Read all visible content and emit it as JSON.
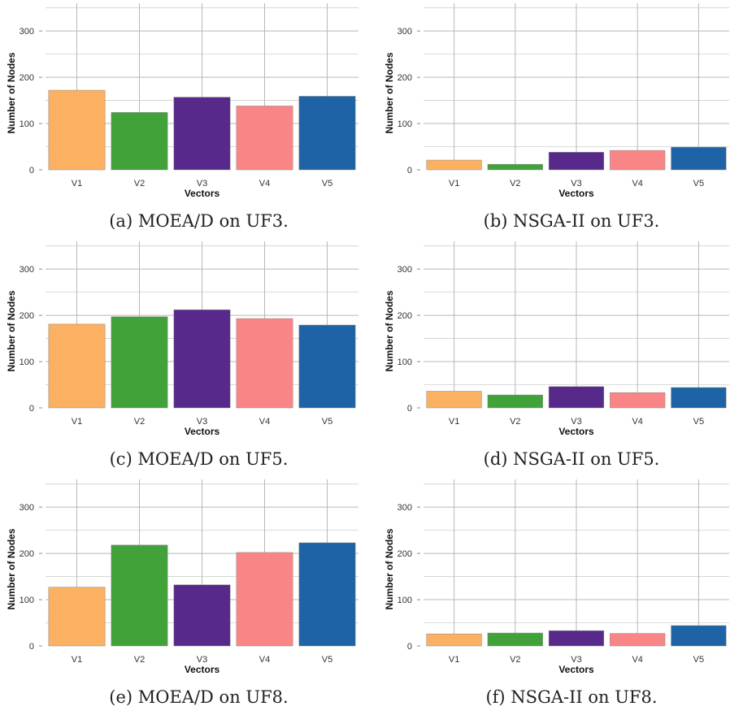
{
  "chart_data": [
    {
      "id": "a",
      "type": "bar",
      "caption": "(a) MOEA/D on UF3.",
      "categories": [
        "V1",
        "V2",
        "V3",
        "V4",
        "V5"
      ],
      "values": [
        172,
        124,
        157,
        138,
        159
      ],
      "xlabel": "Vectors",
      "ylabel": "Number of Nodes",
      "ylim": [
        0,
        360
      ],
      "yticks": [
        0,
        100,
        200,
        300
      ],
      "grid": true
    },
    {
      "id": "b",
      "type": "bar",
      "caption": "(b) NSGA-II on UF3.",
      "categories": [
        "V1",
        "V2",
        "V3",
        "V4",
        "V5"
      ],
      "values": [
        21,
        12,
        38,
        42,
        49
      ],
      "xlabel": "Vectors",
      "ylabel": "Number of Nodes",
      "ylim": [
        0,
        360
      ],
      "yticks": [
        0,
        100,
        200,
        300
      ],
      "grid": true
    },
    {
      "id": "c",
      "type": "bar",
      "caption": "(c) MOEA/D on UF5.",
      "categories": [
        "V1",
        "V2",
        "V3",
        "V4",
        "V5"
      ],
      "values": [
        181,
        197,
        212,
        193,
        179
      ],
      "xlabel": "Vectors",
      "ylabel": "Number of Nodes",
      "ylim": [
        0,
        360
      ],
      "yticks": [
        0,
        100,
        200,
        300
      ],
      "grid": true
    },
    {
      "id": "d",
      "type": "bar",
      "caption": "(d) NSGA-II on UF5.",
      "categories": [
        "V1",
        "V2",
        "V3",
        "V4",
        "V5"
      ],
      "values": [
        36,
        28,
        46,
        33,
        44
      ],
      "xlabel": "Vectors",
      "ylabel": "Number of Nodes",
      "ylim": [
        0,
        360
      ],
      "yticks": [
        0,
        100,
        200,
        300
      ],
      "grid": true
    },
    {
      "id": "e",
      "type": "bar",
      "caption": "(e) MOEA/D on UF8.",
      "categories": [
        "V1",
        "V2",
        "V3",
        "V4",
        "V5"
      ],
      "values": [
        127,
        218,
        132,
        202,
        223
      ],
      "xlabel": "Vectors",
      "ylabel": "Number of Nodes",
      "ylim": [
        0,
        360
      ],
      "yticks": [
        0,
        100,
        200,
        300
      ],
      "grid": true
    },
    {
      "id": "f",
      "type": "bar",
      "caption": "(f) NSGA-II on UF8.",
      "categories": [
        "V1",
        "V2",
        "V3",
        "V4",
        "V5"
      ],
      "values": [
        26,
        28,
        33,
        27,
        44
      ],
      "xlabel": "Vectors",
      "ylabel": "Number of Nodes",
      "ylim": [
        0,
        360
      ],
      "yticks": [
        0,
        100,
        200,
        300
      ],
      "grid": true
    }
  ],
  "colors": [
    "#fbb161",
    "#42a23a",
    "#57298a",
    "#f98587",
    "#1e63a6"
  ],
  "grid_color": "#cfcfcf",
  "grid_major_color": "#b8b8b8",
  "bar_stroke": "#888888"
}
